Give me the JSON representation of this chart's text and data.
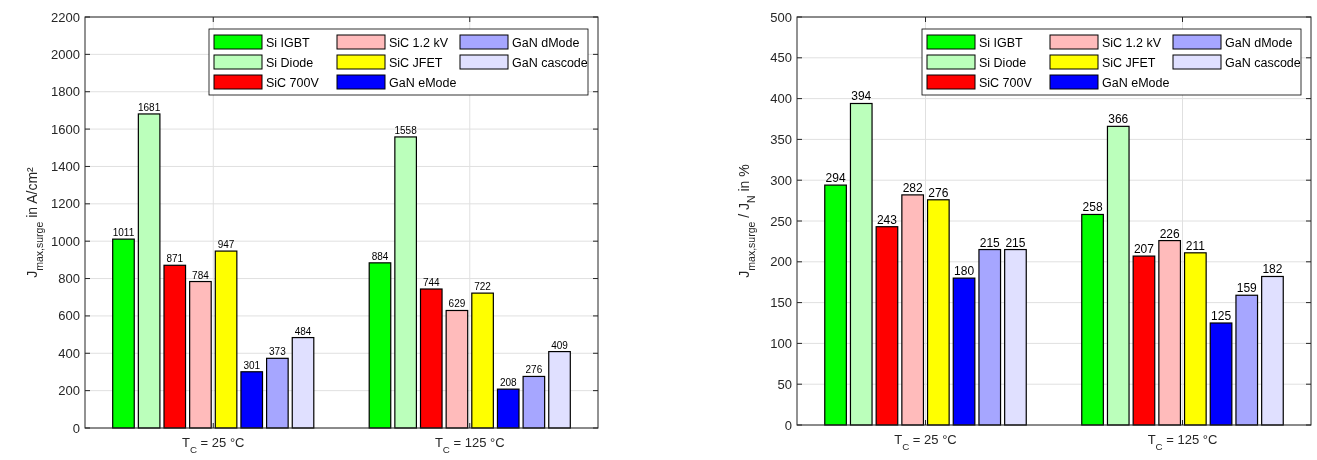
{
  "chart_data": [
    {
      "type": "bar",
      "ylabel": "J$_{max,surge}$ in A/cm²",
      "categories": [
        "T$_{C}$ = 25 °C",
        "T$_{C}$ = 125 °C"
      ],
      "ylim": [
        0,
        2200
      ],
      "yticks": [
        0,
        200,
        400,
        600,
        800,
        1000,
        1200,
        1400,
        1600,
        1800,
        2000,
        2200
      ],
      "grid": true,
      "legend": "top right",
      "data_labels": true,
      "series": [
        {
          "name": "Si IGBT",
          "color": "#00ff00",
          "values": [
            1011,
            884
          ]
        },
        {
          "name": "Si Diode",
          "color": "#bbffbb",
          "values": [
            1681,
            1558
          ]
        },
        {
          "name": "SiC 700V",
          "color": "#ff0000",
          "values": [
            871,
            744
          ]
        },
        {
          "name": "SiC 1.2 kV",
          "color": "#ffbbbb",
          "values": [
            784,
            629
          ]
        },
        {
          "name": "SiC JFET",
          "color": "#ffff00",
          "values": [
            947,
            722
          ]
        },
        {
          "name": "GaN eMode",
          "color": "#0000ff",
          "values": [
            301,
            208
          ]
        },
        {
          "name": "GaN dMode",
          "color": "#a6a6ff",
          "values": [
            373,
            276
          ]
        },
        {
          "name": "GaN cascode",
          "color": "#e0e0ff",
          "values": [
            484,
            409
          ]
        }
      ]
    },
    {
      "type": "bar",
      "ylabel": "J$_{max,surge}$ / J$_{N}$ in %",
      "categories": [
        "T$_{C}$ = 25 °C",
        "T$_{C}$ = 125 °C"
      ],
      "ylim": [
        0,
        500
      ],
      "yticks": [
        0,
        50,
        100,
        150,
        200,
        250,
        300,
        350,
        400,
        450,
        500
      ],
      "grid": true,
      "legend": "top right",
      "data_labels": true,
      "series": [
        {
          "name": "Si IGBT",
          "color": "#00ff00",
          "values": [
            294,
            258
          ]
        },
        {
          "name": "Si Diode",
          "color": "#bbffbb",
          "values": [
            394,
            366
          ]
        },
        {
          "name": "SiC 700V",
          "color": "#ff0000",
          "values": [
            243,
            207
          ]
        },
        {
          "name": "SiC 1.2 kV",
          "color": "#ffbbbb",
          "values": [
            282,
            226
          ]
        },
        {
          "name": "SiC JFET",
          "color": "#ffff00",
          "values": [
            276,
            211
          ]
        },
        {
          "name": "GaN eMode",
          "color": "#0000ff",
          "values": [
            180,
            125
          ]
        },
        {
          "name": "GaN dMode",
          "color": "#a6a6ff",
          "values": [
            215,
            159
          ]
        },
        {
          "name": "GaN cascode",
          "color": "#e0e0ff",
          "values": [
            215,
            182
          ]
        }
      ]
    }
  ]
}
